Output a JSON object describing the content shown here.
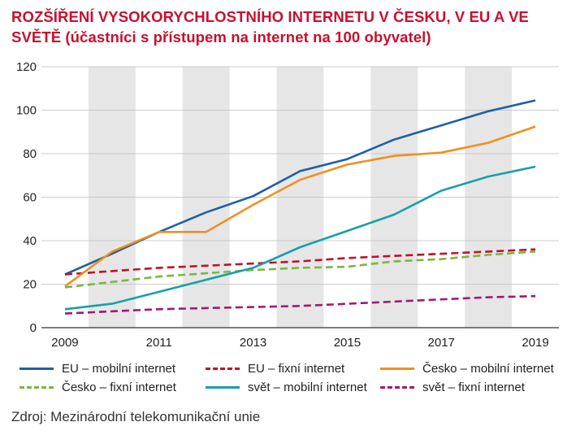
{
  "chart_data": {
    "type": "line",
    "title_line1": "ROZŠÍŘENÍ VYSOKORYCHLOSTNÍHO INTERNETU V ČESKU, V EU A VE",
    "title_line2": "SVĚTĚ (účastníci s přístupem na internet na 100 obyvatel)",
    "x": [
      2009,
      2010,
      2011,
      2012,
      2013,
      2014,
      2015,
      2016,
      2017,
      2018,
      2019
    ],
    "x_tick_labels": [
      "2009",
      "2011",
      "2013",
      "2015",
      "2017",
      "2019"
    ],
    "y_tick_labels": [
      "0",
      "20",
      "40",
      "60",
      "80",
      "100",
      "120"
    ],
    "ylim": [
      0,
      120
    ],
    "xlim": [
      2009,
      2019
    ],
    "grid": "alternating vertical bands",
    "legend_position": "bottom",
    "series": [
      {
        "name": "EU – mobilní internet",
        "color": "#1f5fa6",
        "dash": "solid",
        "values": [
          24.5,
          34,
          44,
          53,
          60.5,
          72,
          77.5,
          86.5,
          93,
          99.5,
          104.5
        ]
      },
      {
        "name": "EU – fixní internet",
        "color": "#c0122b",
        "dash": "dashed",
        "values": [
          24.5,
          26,
          27.5,
          28.5,
          29.5,
          30.5,
          32,
          33,
          34,
          35,
          36
        ]
      },
      {
        "name": "Česko – mobilní internet",
        "color": "#f0901e",
        "dash": "solid",
        "values": [
          19,
          35,
          44,
          44,
          56.5,
          68,
          75,
          79,
          80.5,
          85,
          92.5
        ]
      },
      {
        "name": "Česko – fixní internet",
        "color": "#7ab83e",
        "dash": "dashed",
        "values": [
          18.5,
          21,
          23.5,
          25,
          26.5,
          27.5,
          28,
          30.5,
          31.5,
          33.5,
          35
        ]
      },
      {
        "name": "svět – mobilní internet",
        "color": "#17a0aa",
        "dash": "solid",
        "values": [
          8.5,
          11,
          16.5,
          22,
          27.5,
          37,
          44.5,
          52,
          63,
          69.5,
          74
        ]
      },
      {
        "name": "svět – fixní internet",
        "color": "#a01a72",
        "dash": "dashed",
        "values": [
          6.5,
          7.5,
          8.5,
          9,
          9.5,
          10,
          11,
          12,
          13,
          14,
          14.5
        ]
      }
    ]
  },
  "source": "Zdroj: Mezinárodní telekomunikační unie"
}
